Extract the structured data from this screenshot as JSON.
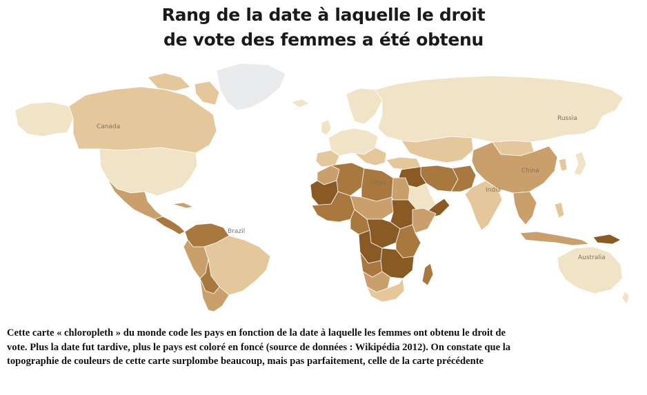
{
  "title": {
    "line1": "Rang de la date à laquelle le droit",
    "line2": "de vote des femmes a été obtenu"
  },
  "map": {
    "labels": {
      "canada": "Canada",
      "russia": "Russia",
      "china": "China",
      "india": "India",
      "libya": "Libya",
      "brazil": "Brazil",
      "australia": "Australia"
    },
    "colors": {
      "lightest": "#f1e3c6",
      "light": "#e4c89b",
      "medium": "#c9a06b",
      "dark": "#a9783e",
      "darkest": "#8a5a25",
      "greenland": "#e9ebed",
      "ocean": "#ffffff",
      "border": "#ffffff"
    }
  },
  "caption": {
    "line1": "Cette carte « chloropleth » du monde code les pays en fonction de la date à laquelle les femmes ont obtenu le droit de",
    "line2": "vote. Plus la date fut tardive, plus le pays est coloré en foncé (source de données : Wikipédia 2012). On constate que la",
    "line3": "topographie de couleurs de cette carte surplombe beaucoup, mais pas parfaitement, celle de la carte précédente"
  }
}
